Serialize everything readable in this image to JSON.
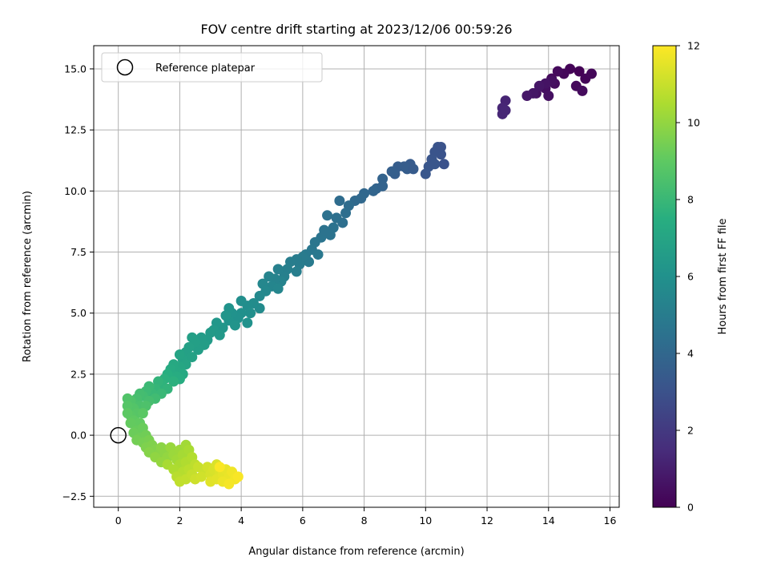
{
  "chart_data": {
    "type": "scatter",
    "title": "FOV centre drift starting at 2023/12/06 00:59:26",
    "xlabel": "Angular distance from reference (arcmin)",
    "ylabel": "Rotation from reference (arcmin)",
    "xlim": [
      -0.8,
      16.3
    ],
    "ylim": [
      -2.95,
      15.95
    ],
    "xticks": [
      0,
      2,
      4,
      6,
      8,
      10,
      12,
      14,
      16
    ],
    "yticks": [
      -2.5,
      0.0,
      2.5,
      5.0,
      7.5,
      10.0,
      12.5,
      15.0
    ],
    "ytick_labels": [
      "−2.5",
      "0.0",
      "2.5",
      "5.0",
      "7.5",
      "10.0",
      "12.5",
      "15.0"
    ],
    "grid": true,
    "legend": {
      "position": "top-left",
      "entries": [
        "Reference platepar"
      ]
    },
    "reference_point": {
      "x": 0,
      "y": 0
    },
    "colorbar": {
      "label": "Hours from first FF file",
      "range": [
        0,
        12
      ],
      "ticks": [
        0,
        2,
        4,
        6,
        8,
        10,
        12
      ],
      "colormap": "viridis"
    },
    "points": [
      [
        15.0,
        14.9,
        0.05
      ],
      [
        14.7,
        15.0,
        0.1
      ],
      [
        15.2,
        14.6,
        0.15
      ],
      [
        14.5,
        14.8,
        0.2
      ],
      [
        15.4,
        14.8,
        0.2
      ],
      [
        14.9,
        14.3,
        0.25
      ],
      [
        14.1,
        14.6,
        0.3
      ],
      [
        14.3,
        14.9,
        0.3
      ],
      [
        15.1,
        14.1,
        0.35
      ],
      [
        14.2,
        14.4,
        0.4
      ],
      [
        13.9,
        14.2,
        0.45
      ],
      [
        14.0,
        13.9,
        0.5
      ],
      [
        13.6,
        14.0,
        0.55
      ],
      [
        14.1,
        14.5,
        0.5
      ],
      [
        13.9,
        14.4,
        0.6
      ],
      [
        13.5,
        14.0,
        0.7
      ],
      [
        13.3,
        13.9,
        0.75
      ],
      [
        13.7,
        14.3,
        0.7
      ],
      [
        12.6,
        13.7,
        1.2
      ],
      [
        12.5,
        13.4,
        1.25
      ],
      [
        12.5,
        13.15,
        1.3
      ],
      [
        12.6,
        13.3,
        1.3
      ],
      [
        10.6,
        11.1,
        3.0
      ],
      [
        10.5,
        11.5,
        3.05
      ],
      [
        10.4,
        11.8,
        3.1
      ],
      [
        10.3,
        11.6,
        3.1
      ],
      [
        10.2,
        11.3,
        3.15
      ],
      [
        10.1,
        11.0,
        3.2
      ],
      [
        10.0,
        10.7,
        3.25
      ],
      [
        10.5,
        11.8,
        3.05
      ],
      [
        10.3,
        11.1,
        3.2
      ],
      [
        9.5,
        11.1,
        3.4
      ],
      [
        9.3,
        11.0,
        3.45
      ],
      [
        9.1,
        11.0,
        3.5
      ],
      [
        9.0,
        10.7,
        3.55
      ],
      [
        8.9,
        10.8,
        3.6
      ],
      [
        9.4,
        10.9,
        3.5
      ],
      [
        9.6,
        10.9,
        3.4
      ],
      [
        8.6,
        10.5,
        3.8
      ],
      [
        8.4,
        10.1,
        3.85
      ],
      [
        8.6,
        10.2,
        3.8
      ],
      [
        8.3,
        10.0,
        3.9
      ],
      [
        8.0,
        9.9,
        4.0
      ],
      [
        7.9,
        9.7,
        4.05
      ],
      [
        7.7,
        9.6,
        4.1
      ],
      [
        7.5,
        9.4,
        4.2
      ],
      [
        7.2,
        9.6,
        4.2
      ],
      [
        7.4,
        9.1,
        4.3
      ],
      [
        7.3,
        8.7,
        4.35
      ],
      [
        7.1,
        8.9,
        4.4
      ],
      [
        6.8,
        9.0,
        4.45
      ],
      [
        7.0,
        8.5,
        4.5
      ],
      [
        6.9,
        8.2,
        4.55
      ],
      [
        6.6,
        8.1,
        4.6
      ],
      [
        6.7,
        8.4,
        4.55
      ],
      [
        6.4,
        7.9,
        4.7
      ],
      [
        6.3,
        7.6,
        4.75
      ],
      [
        6.5,
        7.4,
        4.8
      ],
      [
        6.1,
        7.4,
        4.85
      ],
      [
        6.2,
        7.1,
        4.9
      ],
      [
        5.9,
        7.0,
        5.0
      ],
      [
        6.0,
        7.3,
        4.95
      ],
      [
        5.8,
        7.2,
        5.0
      ],
      [
        5.6,
        7.1,
        5.05
      ],
      [
        5.8,
        6.7,
        5.1
      ],
      [
        5.5,
        6.8,
        5.15
      ],
      [
        5.4,
        6.5,
        5.2
      ],
      [
        5.2,
        6.8,
        5.2
      ],
      [
        5.3,
        6.3,
        5.3
      ],
      [
        5.1,
        6.4,
        5.3
      ],
      [
        5.0,
        6.1,
        5.4
      ],
      [
        4.9,
        6.5,
        5.35
      ],
      [
        5.2,
        6.0,
        5.45
      ],
      [
        4.7,
        6.2,
        5.5
      ],
      [
        4.8,
        5.9,
        5.55
      ],
      [
        4.6,
        5.7,
        5.6
      ],
      [
        4.6,
        5.2,
        5.7
      ],
      [
        4.4,
        5.4,
        5.75
      ],
      [
        4.2,
        5.3,
        5.8
      ],
      [
        4.0,
        5.5,
        5.85
      ],
      [
        4.3,
        5.0,
        5.9
      ],
      [
        4.0,
        5.0,
        5.95
      ],
      [
        3.9,
        4.8,
        6.0
      ],
      [
        3.7,
        5.0,
        6.05
      ],
      [
        4.2,
        4.6,
        6.05
      ],
      [
        3.6,
        4.7,
        6.1
      ],
      [
        3.6,
        5.2,
        6.1
      ],
      [
        3.8,
        4.5,
        6.15
      ],
      [
        3.5,
        4.9,
        6.2
      ],
      [
        3.4,
        4.4,
        6.25
      ],
      [
        3.2,
        4.6,
        6.3
      ],
      [
        3.1,
        4.3,
        6.4
      ],
      [
        3.3,
        4.1,
        6.4
      ],
      [
        3.0,
        4.2,
        6.45
      ],
      [
        2.9,
        3.9,
        6.5
      ],
      [
        2.7,
        4.0,
        6.55
      ],
      [
        2.8,
        3.7,
        6.6
      ],
      [
        2.6,
        3.5,
        6.65
      ],
      [
        2.5,
        3.8,
        6.7
      ],
      [
        2.4,
        4.0,
        6.7
      ],
      [
        2.3,
        3.6,
        6.75
      ],
      [
        2.2,
        3.4,
        6.8
      ],
      [
        2.4,
        3.2,
        6.85
      ],
      [
        2.1,
        3.1,
        6.9
      ],
      [
        2.0,
        3.3,
        6.95
      ],
      [
        2.2,
        2.9,
        7.0
      ],
      [
        2.0,
        2.8,
        7.1
      ],
      [
        1.9,
        2.6,
        7.2
      ],
      [
        2.1,
        2.5,
        7.25
      ],
      [
        1.8,
        2.9,
        7.2
      ],
      [
        1.7,
        2.7,
        7.3
      ],
      [
        2.0,
        2.3,
        7.4
      ],
      [
        1.9,
        2.4,
        7.4
      ],
      [
        1.6,
        2.5,
        7.5
      ],
      [
        1.5,
        2.3,
        7.6
      ],
      [
        1.8,
        2.2,
        7.6
      ],
      [
        1.4,
        2.1,
        7.7
      ],
      [
        1.3,
        2.2,
        7.8
      ],
      [
        1.6,
        1.9,
        7.8
      ],
      [
        1.2,
        1.9,
        7.9
      ],
      [
        1.1,
        1.7,
        8.0
      ],
      [
        1.4,
        1.7,
        8.0
      ],
      [
        1.0,
        2.0,
        8.05
      ],
      [
        0.9,
        1.8,
        8.1
      ],
      [
        1.2,
        1.5,
        8.2
      ],
      [
        0.8,
        1.6,
        8.25
      ],
      [
        0.7,
        1.7,
        8.3
      ],
      [
        1.0,
        1.4,
        8.35
      ],
      [
        0.6,
        1.5,
        8.4
      ],
      [
        0.5,
        1.3,
        8.45
      ],
      [
        0.7,
        1.2,
        8.5
      ],
      [
        0.9,
        1.2,
        8.55
      ],
      [
        0.4,
        1.4,
        8.6
      ],
      [
        0.3,
        1.5,
        8.65
      ],
      [
        0.5,
        1.1,
        8.7
      ],
      [
        0.3,
        1.2,
        8.75
      ],
      [
        0.6,
        0.9,
        8.8
      ],
      [
        0.4,
        0.8,
        8.85
      ],
      [
        0.8,
        0.9,
        8.9
      ],
      [
        0.3,
        0.9,
        8.95
      ],
      [
        0.5,
        0.6,
        9.0
      ],
      [
        0.7,
        0.5,
        9.05
      ],
      [
        0.4,
        0.5,
        9.1
      ],
      [
        0.6,
        0.2,
        9.15
      ],
      [
        0.8,
        0.3,
        9.2
      ],
      [
        0.5,
        0.1,
        9.25
      ],
      [
        0.7,
        -0.1,
        9.3
      ],
      [
        0.9,
        0.0,
        9.35
      ],
      [
        0.6,
        -0.2,
        9.4
      ],
      [
        0.8,
        -0.3,
        9.45
      ],
      [
        1.0,
        -0.2,
        9.5
      ],
      [
        0.9,
        -0.5,
        9.6
      ],
      [
        1.1,
        -0.4,
        9.65
      ],
      [
        1.2,
        -0.6,
        9.7
      ],
      [
        1.0,
        -0.7,
        9.75
      ],
      [
        1.3,
        -0.8,
        9.8
      ],
      [
        1.4,
        -0.5,
        9.85
      ],
      [
        1.5,
        -0.7,
        9.9
      ],
      [
        1.2,
        -0.9,
        9.95
      ],
      [
        1.6,
        -0.9,
        10.0
      ],
      [
        1.4,
        -1.1,
        10.05
      ],
      [
        1.7,
        -0.5,
        10.1
      ],
      [
        1.8,
        -0.8,
        10.15
      ],
      [
        2.0,
        -0.6,
        10.2
      ],
      [
        1.9,
        -1.0,
        10.25
      ],
      [
        2.2,
        -0.4,
        10.3
      ],
      [
        2.1,
        -0.8,
        10.35
      ],
      [
        2.3,
        -0.6,
        10.4
      ],
      [
        1.6,
        -1.2,
        10.4
      ],
      [
        2.0,
        -1.2,
        10.45
      ],
      [
        1.8,
        -1.4,
        10.5
      ],
      [
        2.2,
        -1.1,
        10.55
      ],
      [
        2.4,
        -0.9,
        10.6
      ],
      [
        2.1,
        -1.5,
        10.65
      ],
      [
        1.9,
        -1.7,
        10.7
      ],
      [
        2.3,
        -1.4,
        10.75
      ],
      [
        2.5,
        -1.2,
        10.8
      ],
      [
        2.0,
        -1.9,
        10.85
      ],
      [
        2.2,
        -1.8,
        10.9
      ],
      [
        2.4,
        -1.6,
        10.95
      ],
      [
        2.6,
        -1.3,
        11.0
      ],
      [
        2.8,
        -1.5,
        11.05
      ],
      [
        2.5,
        -1.8,
        11.1
      ],
      [
        2.7,
        -1.7,
        11.15
      ],
      [
        2.9,
        -1.3,
        11.2
      ],
      [
        3.0,
        -1.6,
        11.25
      ],
      [
        3.1,
        -1.4,
        11.3
      ],
      [
        3.2,
        -1.2,
        11.35
      ],
      [
        3.3,
        -1.5,
        11.4
      ],
      [
        3.0,
        -1.9,
        11.45
      ],
      [
        3.2,
        -1.8,
        11.5
      ],
      [
        3.4,
        -1.6,
        11.55
      ],
      [
        3.5,
        -1.4,
        11.6
      ],
      [
        3.6,
        -1.7,
        11.65
      ],
      [
        3.4,
        -1.9,
        11.7
      ],
      [
        3.7,
        -1.5,
        11.75
      ],
      [
        3.8,
        -1.8,
        11.8
      ],
      [
        3.6,
        -2.0,
        11.85
      ],
      [
        3.9,
        -1.7,
        11.9
      ],
      [
        3.3,
        -1.3,
        11.95
      ]
    ]
  }
}
